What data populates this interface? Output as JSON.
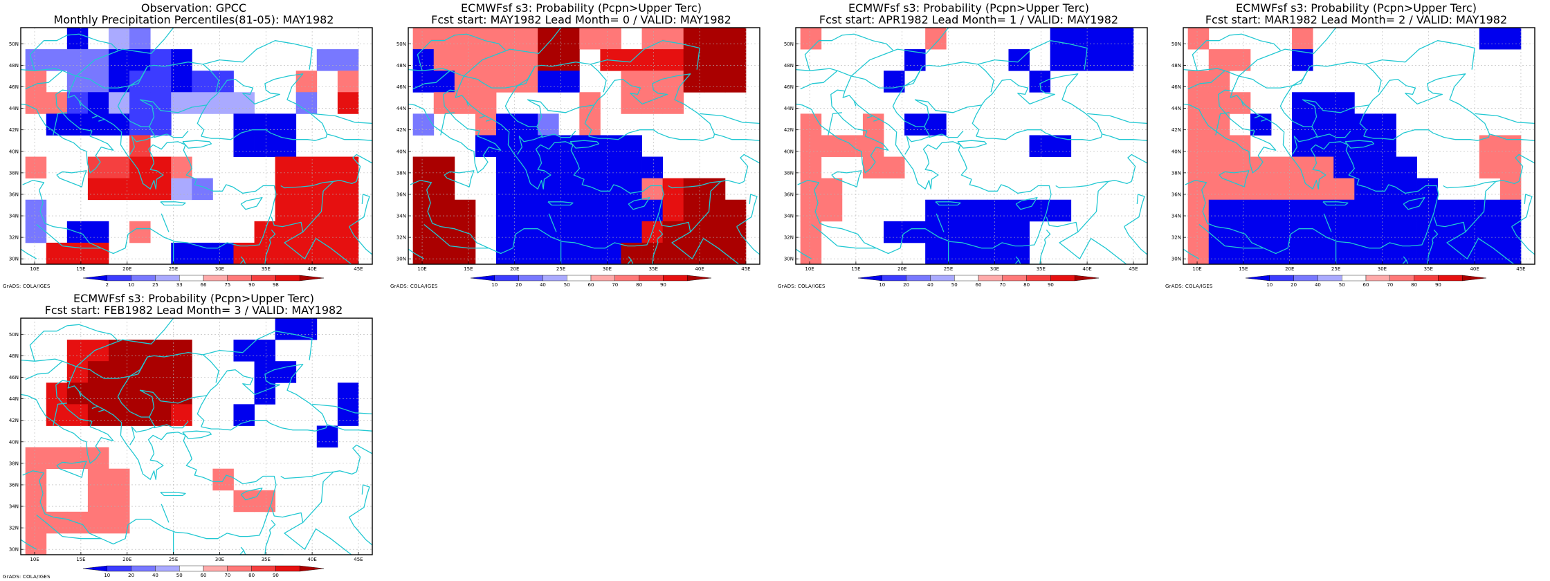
{
  "panels": [
    {
      "title1": "Observation: GPCC",
      "title2": "Monthly Precipitation Percentiles(81-05): MAY1982",
      "colorbar": [
        "2",
        "10",
        "25",
        "33",
        "66",
        "75",
        "90",
        "98"
      ],
      "credit": "GrADS: COLA/IGES"
    },
    {
      "title1": "ECMWFsf s3: Probability (Pcpn>Upper Terc)",
      "title2": "Fcst start: MAY1982  Lead Month= 0 / VALID: MAY1982",
      "colorbar": [
        "10",
        "20",
        "40",
        "50",
        "60",
        "70",
        "80",
        "90"
      ],
      "credit": "GrADS: COLA/IGES"
    },
    {
      "title1": "ECMWFsf s3: Probability (Pcpn>Upper Terc)",
      "title2": "Fcst start: APR1982  Lead Month= 1 / VALID: MAY1982",
      "colorbar": [
        "10",
        "20",
        "40",
        "50",
        "60",
        "70",
        "80",
        "90"
      ],
      "credit": "GrADS: COLA/IGES"
    },
    {
      "title1": "ECMWFsf s3: Probability (Pcpn>Upper Terc)",
      "title2": "Fcst start: MAR1982  Lead Month= 2 / VALID: MAY1982",
      "colorbar": [
        "10",
        "20",
        "40",
        "50",
        "60",
        "70",
        "80",
        "90"
      ],
      "credit": "GrADS: COLA/IGES"
    },
    {
      "title1": "ECMWFsf s3: Probability (Pcpn>Upper Terc)",
      "title2": "Fcst start: FEB1982  Lead Month= 3 / VALID: MAY1982",
      "colorbar": [
        "10",
        "20",
        "40",
        "50",
        "60",
        "70",
        "80",
        "90"
      ],
      "credit": "GrADS: COLA/IGES"
    }
  ],
  "lat_labels": [
    "50N",
    "48N",
    "46N",
    "44N",
    "42N",
    "40N",
    "38N",
    "36N",
    "34N",
    "32N",
    "30N"
  ],
  "lon_labels": [
    "10E",
    "15E",
    "20E",
    "25E",
    "30E",
    "35E",
    "40E",
    "45E"
  ],
  "palette": {
    "box": "#000000",
    "coast": "#22c8d2",
    "grid": "#b4b4b4",
    "classes": [
      "#0000ee",
      "#3c3cff",
      "#7878ff",
      "#aaaaff",
      "#ffffff",
      "#ffaaaa",
      "#ff7878",
      "#f54040",
      "#e61010",
      "#aa0000"
    ]
  }
}
